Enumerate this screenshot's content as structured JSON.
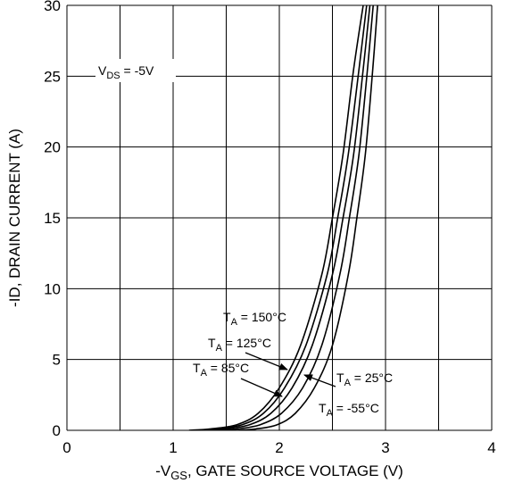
{
  "chart_data": {
    "type": "line",
    "xlabel": "-V GS, GATE SOURCE VOLTAGE (V)",
    "xlabel_parts": {
      "prefix": "-V",
      "sub": "GS",
      "suffix": ", GATE SOURCE VOLTAGE (V)"
    },
    "ylabel": "-ID, DRAIN CURRENT (A)",
    "xlim": [
      0,
      4
    ],
    "ylim": [
      0,
      30
    ],
    "x_ticks": [
      "0",
      "1",
      "2",
      "3",
      "4"
    ],
    "y_ticks": [
      "0",
      "5",
      "10",
      "15",
      "20",
      "25",
      "30"
    ],
    "grid": true,
    "annotations": {
      "vds": {
        "prefix": "V",
        "sub": "DS",
        "suffix": " = -5V"
      },
      "t150": {
        "prefix": "T",
        "sub": "A",
        "suffix": " = 150°C"
      },
      "t125": {
        "prefix": "T",
        "sub": "A",
        "suffix": " = 125°C"
      },
      "t85": {
        "prefix": "T",
        "sub": "A",
        "suffix": " = 85°C"
      },
      "t25": {
        "prefix": "T",
        "sub": "A",
        "suffix": " = 25°C"
      },
      "tm55": {
        "prefix": "T",
        "sub": "A",
        "suffix": " = -55°C"
      }
    },
    "series": [
      {
        "name": "TA = 150°C",
        "x": [
          1.15,
          1.35,
          1.6,
          1.8,
          2.0,
          2.2,
          2.4,
          2.5,
          2.6,
          2.7,
          2.8
        ],
        "y": [
          0,
          0.1,
          0.4,
          1.2,
          3.0,
          6.0,
          11.0,
          15.0,
          19.5,
          25.5,
          30.5
        ]
      },
      {
        "name": "TA = 125°C",
        "x": [
          1.2,
          1.4,
          1.65,
          1.85,
          2.05,
          2.25,
          2.45,
          2.55,
          2.65,
          2.75,
          2.83
        ],
        "y": [
          0,
          0.1,
          0.4,
          1.2,
          3.0,
          6.0,
          11.0,
          15.0,
          19.5,
          25.5,
          30.5
        ]
      },
      {
        "name": "TA = 85°C",
        "x": [
          1.28,
          1.48,
          1.72,
          1.92,
          2.12,
          2.31,
          2.5,
          2.6,
          2.7,
          2.79,
          2.86
        ],
        "y": [
          0,
          0.1,
          0.4,
          1.2,
          3.0,
          6.0,
          11.0,
          15.0,
          19.5,
          25.5,
          30.5
        ]
      },
      {
        "name": "TA = 25°C",
        "x": [
          1.4,
          1.6,
          1.82,
          2.02,
          2.22,
          2.4,
          2.57,
          2.66,
          2.75,
          2.83,
          2.89
        ],
        "y": [
          0,
          0.1,
          0.4,
          1.2,
          3.0,
          6.0,
          11.0,
          15.0,
          19.5,
          25.5,
          30.5
        ]
      },
      {
        "name": "TA = -55°C",
        "x": [
          1.58,
          1.78,
          1.98,
          2.15,
          2.33,
          2.5,
          2.65,
          2.73,
          2.81,
          2.88,
          2.93
        ],
        "y": [
          0,
          0.1,
          0.4,
          1.2,
          3.0,
          6.0,
          11.0,
          15.0,
          19.5,
          25.5,
          30.5
        ]
      }
    ]
  }
}
